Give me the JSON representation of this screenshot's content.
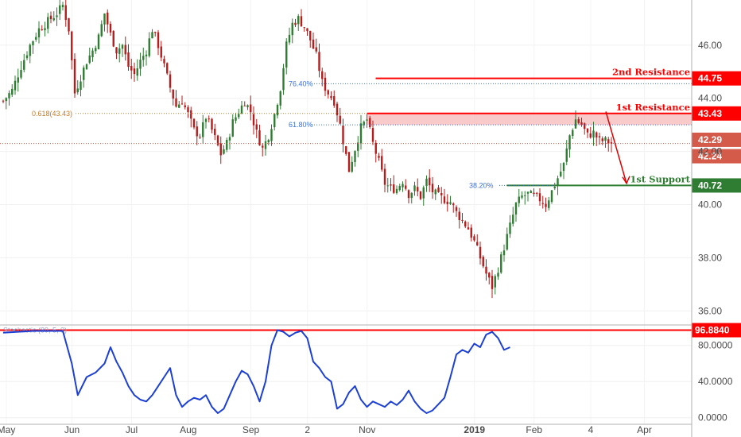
{
  "chart_data": [
    {
      "type": "candlestick",
      "y_ticks": [
        "46.00",
        "44.00",
        "42.00",
        "40.00",
        "38.00",
        "36.00"
      ],
      "x_ticks": [
        "May",
        "Jun",
        "Jul",
        "Aug",
        "Sep",
        "2",
        "Nov",
        "2019",
        "Feb",
        "4",
        "Apr"
      ],
      "ylim": [
        35.5,
        47.7
      ],
      "close_path": [
        [
          0,
          43.9
        ],
        [
          3,
          44.3
        ],
        [
          6,
          45.2
        ],
        [
          9,
          46.0
        ],
        [
          12,
          46.6
        ],
        [
          15,
          46.9
        ],
        [
          18,
          47.2
        ],
        [
          20,
          47.5
        ],
        [
          22,
          46.6
        ],
        [
          24,
          44.2
        ],
        [
          26,
          44.8
        ],
        [
          28,
          45.4
        ],
        [
          30,
          45.8
        ],
        [
          32,
          46.3
        ],
        [
          34,
          47.2
        ],
        [
          36,
          46.4
        ],
        [
          38,
          45.8
        ],
        [
          40,
          46.0
        ],
        [
          42,
          45.2
        ],
        [
          44,
          44.9
        ],
        [
          46,
          45.4
        ],
        [
          48,
          45.8
        ],
        [
          50,
          46.6
        ],
        [
          52,
          46.0
        ],
        [
          54,
          45.2
        ],
        [
          56,
          44.4
        ],
        [
          58,
          43.7
        ],
        [
          60,
          43.9
        ],
        [
          62,
          43.4
        ],
        [
          64,
          42.8
        ],
        [
          66,
          42.6
        ],
        [
          68,
          43.3
        ],
        [
          70,
          42.8
        ],
        [
          72,
          42.2
        ],
        [
          73,
          41.9
        ],
        [
          75,
          42.3
        ],
        [
          77,
          43.1
        ],
        [
          79,
          43.5
        ],
        [
          81,
          43.9
        ],
        [
          83,
          43.5
        ],
        [
          85,
          42.7
        ],
        [
          87,
          42.1
        ],
        [
          89,
          42.6
        ],
        [
          91,
          43.4
        ],
        [
          93,
          44.4
        ],
        [
          95,
          46.0
        ],
        [
          97,
          46.8
        ],
        [
          99,
          47.0
        ],
        [
          101,
          46.7
        ],
        [
          103,
          46.2
        ],
        [
          105,
          45.6
        ],
        [
          107,
          44.6
        ],
        [
          109,
          44.2
        ],
        [
          111,
          43.9
        ],
        [
          113,
          43.0
        ],
        [
          114,
          42.4
        ],
        [
          116,
          41.3
        ],
        [
          118,
          42.1
        ],
        [
          120,
          42.9
        ],
        [
          122,
          43.2
        ],
        [
          124,
          42.3
        ],
        [
          126,
          41.6
        ],
        [
          128,
          40.8
        ],
        [
          130,
          40.6
        ],
        [
          132,
          40.6
        ],
        [
          134,
          40.9
        ],
        [
          136,
          40.4
        ],
        [
          138,
          40.6
        ],
        [
          140,
          40.3
        ],
        [
          142,
          40.9
        ],
        [
          144,
          40.5
        ],
        [
          146,
          40.3
        ],
        [
          148,
          40.2
        ],
        [
          150,
          40.1
        ],
        [
          152,
          39.7
        ],
        [
          154,
          39.4
        ],
        [
          156,
          39.1
        ],
        [
          158,
          38.6
        ],
        [
          160,
          38.0
        ],
        [
          162,
          37.4
        ],
        [
          164,
          36.9
        ],
        [
          166,
          37.6
        ],
        [
          168,
          38.4
        ],
        [
          170,
          39.2
        ],
        [
          172,
          40.0
        ],
        [
          174,
          40.3
        ],
        [
          176,
          40.4
        ],
        [
          178,
          40.3
        ],
        [
          180,
          40.2
        ],
        [
          182,
          40.0
        ],
        [
          184,
          40.5
        ],
        [
          186,
          41.0
        ],
        [
          188,
          41.5
        ],
        [
          190,
          42.6
        ],
        [
          192,
          43.2
        ],
        [
          194,
          43.0
        ],
        [
          196,
          42.6
        ],
        [
          198,
          42.7
        ],
        [
          200,
          42.4
        ],
        [
          202,
          42.4
        ],
        [
          204,
          42.3
        ]
      ],
      "levels": [
        {
          "label": "2nd Resistance",
          "value": "44.75",
          "color": "#ff0000"
        },
        {
          "label": "1st Resistance",
          "value": "43.43",
          "color": "#ff0000"
        },
        {
          "label": "",
          "value": "42.29",
          "color": "#d45a4a"
        },
        {
          "label": "",
          "value": "42.24",
          "color": "#d45a4a"
        },
        {
          "label": "1st Support",
          "value": "40.72",
          "color": "#2e7d32"
        }
      ],
      "fib_labels": [
        "76.40%",
        "61.80%",
        "38.20%",
        "0.618(43.43)"
      ]
    },
    {
      "type": "line",
      "name": "Stochastic (89, 5, 3)",
      "y_ticks": [
        "80.0000",
        "40.0000",
        "0.0000"
      ],
      "ylim": [
        -2,
        100
      ],
      "level": {
        "value": "96.8840",
        "color": "#ff0000"
      },
      "points": [
        [
          0,
          94
        ],
        [
          10,
          96
        ],
        [
          16,
          96
        ],
        [
          20,
          96
        ],
        [
          23,
          60
        ],
        [
          25,
          25
        ],
        [
          28,
          45
        ],
        [
          31,
          50
        ],
        [
          34,
          60
        ],
        [
          36,
          78
        ],
        [
          38,
          62
        ],
        [
          40,
          50
        ],
        [
          42,
          35
        ],
        [
          44,
          25
        ],
        [
          46,
          20
        ],
        [
          48,
          18
        ],
        [
          50,
          25
        ],
        [
          52,
          35
        ],
        [
          54,
          45
        ],
        [
          56,
          55
        ],
        [
          58,
          25
        ],
        [
          60,
          12
        ],
        [
          62,
          18
        ],
        [
          64,
          22
        ],
        [
          66,
          20
        ],
        [
          68,
          25
        ],
        [
          70,
          12
        ],
        [
          72,
          5
        ],
        [
          74,
          10
        ],
        [
          76,
          25
        ],
        [
          78,
          40
        ],
        [
          80,
          52
        ],
        [
          82,
          48
        ],
        [
          84,
          35
        ],
        [
          86,
          18
        ],
        [
          88,
          40
        ],
        [
          90,
          80
        ],
        [
          92,
          97
        ],
        [
          94,
          95
        ],
        [
          96,
          90
        ],
        [
          98,
          94
        ],
        [
          100,
          96
        ],
        [
          102,
          88
        ],
        [
          104,
          62
        ],
        [
          106,
          55
        ],
        [
          108,
          45
        ],
        [
          110,
          40
        ],
        [
          112,
          10
        ],
        [
          114,
          15
        ],
        [
          116,
          28
        ],
        [
          118,
          35
        ],
        [
          120,
          20
        ],
        [
          122,
          12
        ],
        [
          124,
          18
        ],
        [
          126,
          15
        ],
        [
          128,
          12
        ],
        [
          130,
          18
        ],
        [
          132,
          14
        ],
        [
          134,
          20
        ],
        [
          136,
          30
        ],
        [
          138,
          18
        ],
        [
          140,
          10
        ],
        [
          142,
          5
        ],
        [
          144,
          8
        ],
        [
          146,
          15
        ],
        [
          148,
          22
        ],
        [
          150,
          45
        ],
        [
          152,
          70
        ],
        [
          154,
          75
        ],
        [
          156,
          72
        ],
        [
          158,
          82
        ],
        [
          160,
          78
        ],
        [
          162,
          92
        ],
        [
          164,
          95
        ],
        [
          166,
          88
        ],
        [
          168,
          75
        ],
        [
          170,
          78
        ]
      ]
    }
  ]
}
